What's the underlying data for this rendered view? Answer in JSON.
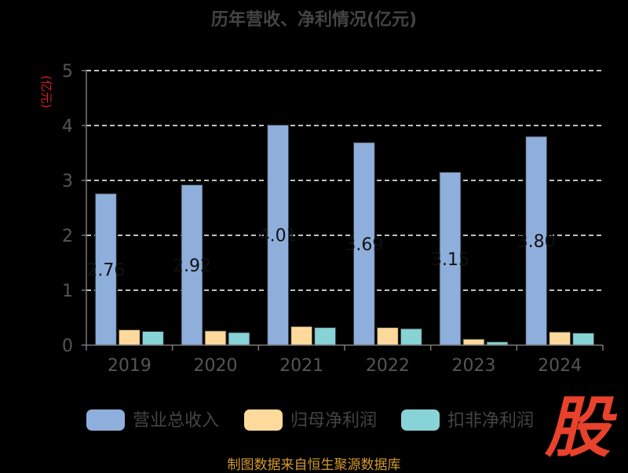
{
  "chart_data": {
    "type": "bar",
    "title": "历年营收、净利情况(亿元)",
    "ylabel": "(亿元)",
    "categories": [
      "2019",
      "2020",
      "2021",
      "2022",
      "2023",
      "2024"
    ],
    "yticks": [
      "0",
      "1",
      "2",
      "3",
      "4",
      "5"
    ],
    "ylim": [
      0,
      5
    ],
    "grid": true,
    "legend_position": "bottom",
    "series": [
      {
        "name": "营业总收入",
        "color": "#8eaedb",
        "values": [
          2.76,
          2.92,
          4.01,
          3.69,
          3.15,
          3.8
        ]
      },
      {
        "name": "归母净利润",
        "color": "#fdd99b",
        "values": [
          0.28,
          0.26,
          0.34,
          0.32,
          0.11,
          0.24
        ]
      },
      {
        "name": "扣非净利润",
        "color": "#87d3d6",
        "values": [
          0.25,
          0.23,
          0.32,
          0.3,
          0.06,
          0.22
        ]
      }
    ],
    "data_labels": [
      "2.76",
      "2.92",
      "4.01",
      "3.69",
      "3.15",
      "3.80"
    ]
  },
  "watermark": "股",
  "source_text": "制图数据来自恒生聚源数据库"
}
